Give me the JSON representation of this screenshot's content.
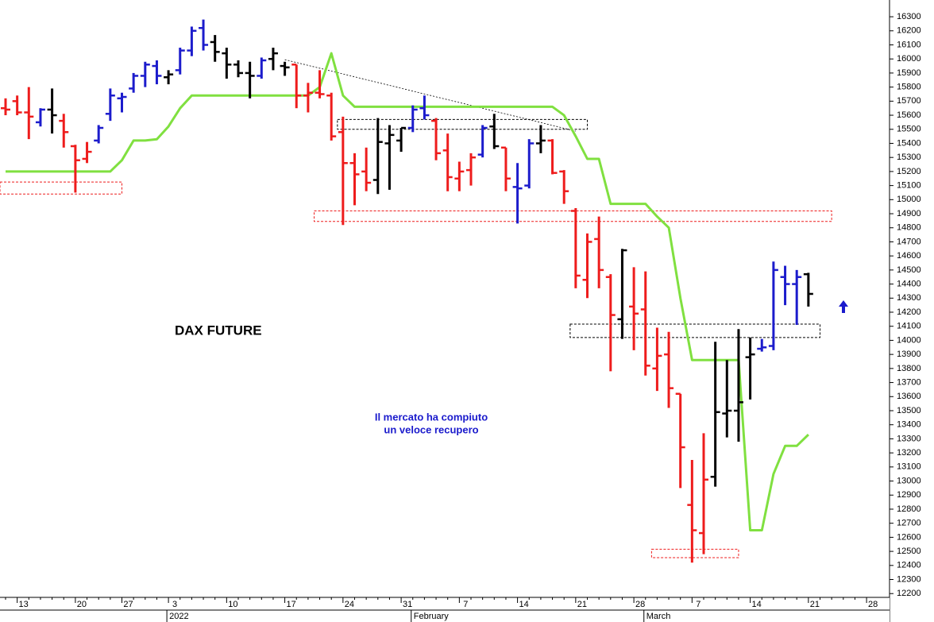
{
  "chart_data": {
    "type": "ohlc",
    "title": "DAX FUTURE",
    "annotation_lines": [
      "Il mercato ha compiuto",
      "un veloce recupero"
    ],
    "categories": [
      null,
      "13",
      null,
      null,
      null,
      null,
      "20",
      null,
      null,
      null,
      "27",
      null,
      null,
      null,
      "3",
      null,
      null,
      null,
      null,
      "10",
      null,
      null,
      null,
      null,
      "17",
      null,
      null,
      null,
      null,
      "24",
      null,
      null,
      null,
      null,
      "31",
      null,
      null,
      null,
      null,
      "7",
      null,
      null,
      null,
      null,
      "14",
      null,
      null,
      null,
      null,
      "21",
      null,
      null,
      null,
      null,
      "28",
      null,
      null,
      null,
      null,
      "7",
      null,
      null,
      null,
      null,
      "14",
      null,
      null,
      null,
      null,
      "21",
      null,
      null,
      null,
      null,
      "28"
    ],
    "months": [
      {
        "label": "2022",
        "index": 14
      },
      {
        "label": "February",
        "index": 35
      },
      {
        "label": "March",
        "index": 55
      }
    ],
    "ohlc": {
      "open": [
        15650,
        15700,
        15620,
        15550,
        15640,
        15560,
        15380,
        15290,
        15420,
        15610,
        15720,
        15790,
        15880,
        15950,
        15870,
        15920,
        16060,
        16220,
        16120,
        16040,
        15960,
        15900,
        15880,
        16000,
        15950,
        15960,
        15740,
        15760,
        15740,
        15480,
        15260,
        15200,
        15140,
        15400,
        15420,
        15510,
        15650,
        15560,
        15350,
        15150,
        15210,
        15320,
        15520,
        15370,
        15090,
        15100,
        15400,
        15420,
        15200,
        14920,
        14430,
        14720,
        14450,
        14150,
        14240,
        14220,
        13800,
        13900,
        13620,
        12830,
        12630,
        13030,
        13480,
        13500,
        13880,
        13940,
        13960,
        14450,
        14400,
        14470,
        null,
        null,
        null,
        null,
        null
      ],
      "high": [
        15720,
        15740,
        15800,
        15650,
        15790,
        15610,
        15390,
        15410,
        15530,
        15790,
        15760,
        15900,
        15980,
        15990,
        15920,
        16080,
        16230,
        16280,
        16170,
        16080,
        15990,
        15980,
        16010,
        16080,
        15980,
        15960,
        15830,
        15920,
        15760,
        15590,
        15330,
        15370,
        15580,
        15530,
        15510,
        15670,
        15740,
        15580,
        15470,
        15270,
        15330,
        15530,
        15610,
        15370,
        15260,
        15430,
        15530,
        15430,
        15210,
        14940,
        14760,
        14880,
        14470,
        14650,
        14520,
        14490,
        14090,
        14060,
        13620,
        13150,
        13340,
        13990,
        13860,
        14080,
        14020,
        14010,
        14560,
        14530,
        14500,
        14480,
        null,
        null,
        null,
        null,
        null
      ],
      "low": [
        15600,
        15600,
        15430,
        15520,
        15470,
        15370,
        15050,
        15260,
        15400,
        15560,
        15620,
        15760,
        15800,
        15820,
        15820,
        15890,
        16020,
        16060,
        15980,
        15860,
        15870,
        15720,
        15860,
        15920,
        15880,
        15650,
        15620,
        15720,
        15420,
        14820,
        14960,
        15060,
        15040,
        15070,
        15340,
        15480,
        15570,
        15280,
        15060,
        15060,
        15100,
        15300,
        15360,
        15060,
        14830,
        15080,
        15330,
        15180,
        14970,
        14370,
        14300,
        14370,
        13780,
        14010,
        13930,
        13750,
        13640,
        13520,
        12950,
        12420,
        12480,
        12960,
        13310,
        13280,
        13580,
        13920,
        13930,
        14250,
        14110,
        14240,
        null,
        null,
        null,
        null,
        null
      ],
      "close": [
        15640,
        15620,
        15590,
        15640,
        15600,
        15480,
        15280,
        15340,
        15510,
        15740,
        15730,
        15880,
        15960,
        15880,
        15890,
        16060,
        16200,
        16100,
        16050,
        15960,
        15900,
        15880,
        15990,
        16040,
        15940,
        15740,
        15760,
        15750,
        15450,
        15260,
        15180,
        15120,
        15410,
        15460,
        15510,
        15640,
        15600,
        15330,
        15160,
        15200,
        15300,
        15510,
        15380,
        15150,
        15080,
        15400,
        15420,
        15190,
        15060,
        14460,
        14700,
        14500,
        14180,
        14640,
        14190,
        13820,
        13890,
        13660,
        13240,
        12650,
        13010,
        13490,
        13500,
        13560,
        13900,
        13950,
        14500,
        14400,
        14450,
        14330,
        null,
        null,
        null,
        null,
        null
      ],
      "colors": [
        "#ee1c1c",
        "#ee1c1c",
        "#ee1c1c",
        "#1c1ccc",
        "#000000",
        "#ee1c1c",
        "#ee1c1c",
        "#ee1c1c",
        "#1c1ccc",
        "#1c1ccc",
        "#1c1ccc",
        "#1c1ccc",
        "#1c1ccc",
        "#1c1ccc",
        "#000000",
        "#1c1ccc",
        "#1c1ccc",
        "#1c1ccc",
        "#000000",
        "#000000",
        "#000000",
        "#000000",
        "#1c1ccc",
        "#000000",
        "#000000",
        "#ee1c1c",
        "#ee1c1c",
        "#ee1c1c",
        "#ee1c1c",
        "#ee1c1c",
        "#ee1c1c",
        "#ee1c1c",
        "#000000",
        "#000000",
        "#000000",
        "#1c1ccc",
        "#1c1ccc",
        "#ee1c1c",
        "#ee1c1c",
        "#ee1c1c",
        "#ee1c1c",
        "#1c1ccc",
        "#000000",
        "#ee1c1c",
        "#1c1ccc",
        "#1c1ccc",
        "#000000",
        "#ee1c1c",
        "#ee1c1c",
        "#ee1c1c",
        "#ee1c1c",
        "#ee1c1c",
        "#ee1c1c",
        "#000000",
        "#ee1c1c",
        "#ee1c1c",
        "#ee1c1c",
        "#ee1c1c",
        "#ee1c1c",
        "#ee1c1c",
        "#ee1c1c",
        "#000000",
        "#000000",
        "#000000",
        "#000000",
        "#1c1ccc",
        "#1c1ccc",
        "#1c1ccc",
        "#1c1ccc",
        "#000000",
        null,
        null,
        null,
        null,
        null
      ]
    },
    "line": {
      "color": "#80e040",
      "values": [
        15200,
        15200,
        15200,
        15200,
        15200,
        15200,
        15200,
        15200,
        15200,
        15200,
        15280,
        15420,
        15420,
        15430,
        15520,
        15650,
        15740,
        15740,
        15740,
        15740,
        15740,
        15740,
        15740,
        15740,
        15740,
        15740,
        15740,
        15800,
        16040,
        15740,
        15660,
        15660,
        15660,
        15660,
        15660,
        15660,
        15660,
        15660,
        15660,
        15660,
        15660,
        15660,
        15660,
        15660,
        15660,
        15660,
        15660,
        15660,
        15600,
        15450,
        15290,
        15290,
        14970,
        14970,
        14970,
        14970,
        14880,
        14800,
        14300,
        13860,
        13860,
        13860,
        13860,
        13860,
        12650,
        12650,
        13050,
        13250,
        13250,
        13330,
        null,
        null,
        null,
        null,
        null
      ]
    },
    "zones": [
      {
        "from": 0,
        "to": 10,
        "low": 15040,
        "high": 15125,
        "color": "#ee1c1c"
      },
      {
        "from": 27,
        "to": 71,
        "low": 14845,
        "high": 14920,
        "color": "#ee1c1c"
      },
      {
        "from": 56,
        "to": 63,
        "low": 12455,
        "high": 12515,
        "color": "#ee1c1c"
      },
      {
        "from": 29,
        "to": 50,
        "low": 15500,
        "high": 15570,
        "color": "#000000"
      },
      {
        "from": 49,
        "to": 70,
        "low": 14020,
        "high": 14115,
        "color": "#000000"
      }
    ],
    "trendline": {
      "from_index": 24,
      "from_value": 15995,
      "to_index": 49,
      "to_value": 15487
    },
    "ylim": [
      11998,
      16419
    ],
    "yticks": [
      12200,
      12300,
      12400,
      12500,
      12600,
      12700,
      12800,
      12900,
      13000,
      13100,
      13200,
      13300,
      13400,
      13500,
      13600,
      13700,
      13800,
      13900,
      14000,
      14100,
      14200,
      14300,
      14400,
      14500,
      14600,
      14700,
      14800,
      14900,
      15000,
      15100,
      15200,
      15300,
      15400,
      15500,
      15600,
      15700,
      15800,
      15900,
      16000,
      16100,
      16200,
      16300
    ],
    "y_axis_side": "right",
    "grid": false
  }
}
